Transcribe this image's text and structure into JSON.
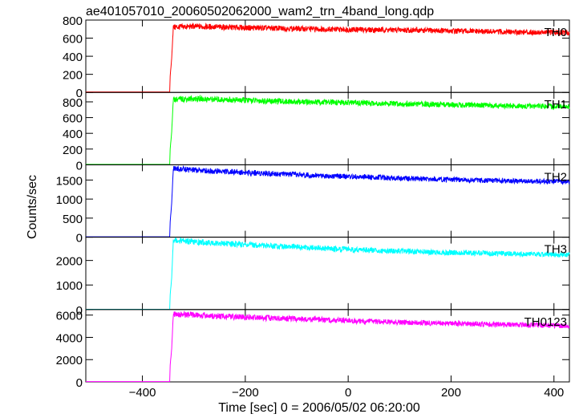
{
  "title": "ae401057010_20060502062000_wam2_trn_4band_long.qdp",
  "ylabel": "Counts/sec",
  "xlabel": "Time [sec] 0 = 2006/05/02 06:20:00",
  "chart_data": [
    {
      "type": "line",
      "series": [
        {
          "name": "TH0",
          "color": "#ff0000",
          "points": [
            [
              -510,
              5
            ],
            [
              -347,
              5
            ],
            [
              -346,
              180
            ],
            [
              -343,
              380
            ],
            [
              -340,
              720
            ],
            [
              -300,
              730
            ],
            [
              -200,
              715
            ],
            [
              -100,
              705
            ],
            [
              0,
              695
            ],
            [
              100,
              690
            ],
            [
              200,
              680
            ],
            [
              300,
              670
            ],
            [
              430,
              660
            ]
          ]
        }
      ],
      "xlim": [
        -510,
        430
      ],
      "ylim": [
        0,
        800
      ],
      "yticks": [
        0,
        200,
        400,
        600,
        800
      ],
      "ytick_labels": [
        "0",
        "200",
        "400",
        "600",
        "800"
      ],
      "panel_label": "TH0"
    },
    {
      "type": "line",
      "series": [
        {
          "name": "TH1",
          "color": "#00ff00",
          "points": [
            [
              -510,
              5
            ],
            [
              -347,
              5
            ],
            [
              -346,
              200
            ],
            [
              -343,
              420
            ],
            [
              -340,
              830
            ],
            [
              -300,
              840
            ],
            [
              -200,
              820
            ],
            [
              -100,
              800
            ],
            [
              0,
              790
            ],
            [
              100,
              775
            ],
            [
              200,
              765
            ],
            [
              300,
              750
            ],
            [
              430,
              740
            ]
          ]
        }
      ],
      "xlim": [
        -510,
        430
      ],
      "ylim": [
        0,
        920
      ],
      "yticks": [
        0,
        200,
        400,
        600,
        800
      ],
      "ytick_labels": [
        "0",
        "200",
        "400",
        "600",
        "800"
      ],
      "panel_label": "TH1"
    },
    {
      "type": "line",
      "series": [
        {
          "name": "TH2",
          "color": "#0000ff",
          "points": [
            [
              -510,
              10
            ],
            [
              -347,
              10
            ],
            [
              -346,
              400
            ],
            [
              -343,
              900
            ],
            [
              -340,
              1800
            ],
            [
              -300,
              1760
            ],
            [
              -200,
              1700
            ],
            [
              -100,
              1640
            ],
            [
              0,
              1590
            ],
            [
              100,
              1550
            ],
            [
              200,
              1510
            ],
            [
              300,
              1480
            ],
            [
              430,
              1450
            ]
          ]
        }
      ],
      "xlim": [
        -510,
        430
      ],
      "ylim": [
        0,
        1900
      ],
      "yticks": [
        0,
        500,
        1000,
        1500
      ],
      "ytick_labels": [
        "0",
        "500",
        "1000",
        "1500"
      ],
      "panel_label": "TH2"
    },
    {
      "type": "line",
      "series": [
        {
          "name": "TH3",
          "color": "#00ffff",
          "points": [
            [
              -510,
              10
            ],
            [
              -347,
              10
            ],
            [
              -346,
              600
            ],
            [
              -343,
              1300
            ],
            [
              -340,
              2850
            ],
            [
              -300,
              2750
            ],
            [
              -200,
              2650
            ],
            [
              -100,
              2550
            ],
            [
              0,
              2450
            ],
            [
              100,
              2380
            ],
            [
              200,
              2320
            ],
            [
              300,
              2280
            ],
            [
              430,
              2230
            ]
          ]
        }
      ],
      "xlim": [
        -510,
        430
      ],
      "ylim": [
        0,
        2950
      ],
      "yticks": [
        0,
        1000,
        2000
      ],
      "ytick_labels": [
        "0",
        "1000",
        "2000"
      ],
      "panel_label": "TH3"
    },
    {
      "type": "line",
      "series": [
        {
          "name": "TH0123",
          "color": "#ff00ff",
          "points": [
            [
              -510,
              30
            ],
            [
              -347,
              30
            ],
            [
              -346,
              1500
            ],
            [
              -343,
              3000
            ],
            [
              -340,
              6100
            ],
            [
              -300,
              6000
            ],
            [
              -200,
              5800
            ],
            [
              -100,
              5650
            ],
            [
              0,
              5500
            ],
            [
              100,
              5350
            ],
            [
              200,
              5250
            ],
            [
              300,
              5150
            ],
            [
              430,
              5050
            ]
          ]
        }
      ],
      "xlim": [
        -510,
        430
      ],
      "ylim": [
        0,
        6500
      ],
      "yticks": [
        0,
        2000,
        4000,
        6000
      ],
      "ytick_labels": [
        "0",
        "2000",
        "4000",
        "6000"
      ],
      "xticks": [
        -400,
        -200,
        0,
        200,
        400
      ],
      "xtick_labels": [
        "−400",
        "−200",
        "0",
        "200",
        "400"
      ],
      "panel_label": "TH0123"
    }
  ]
}
